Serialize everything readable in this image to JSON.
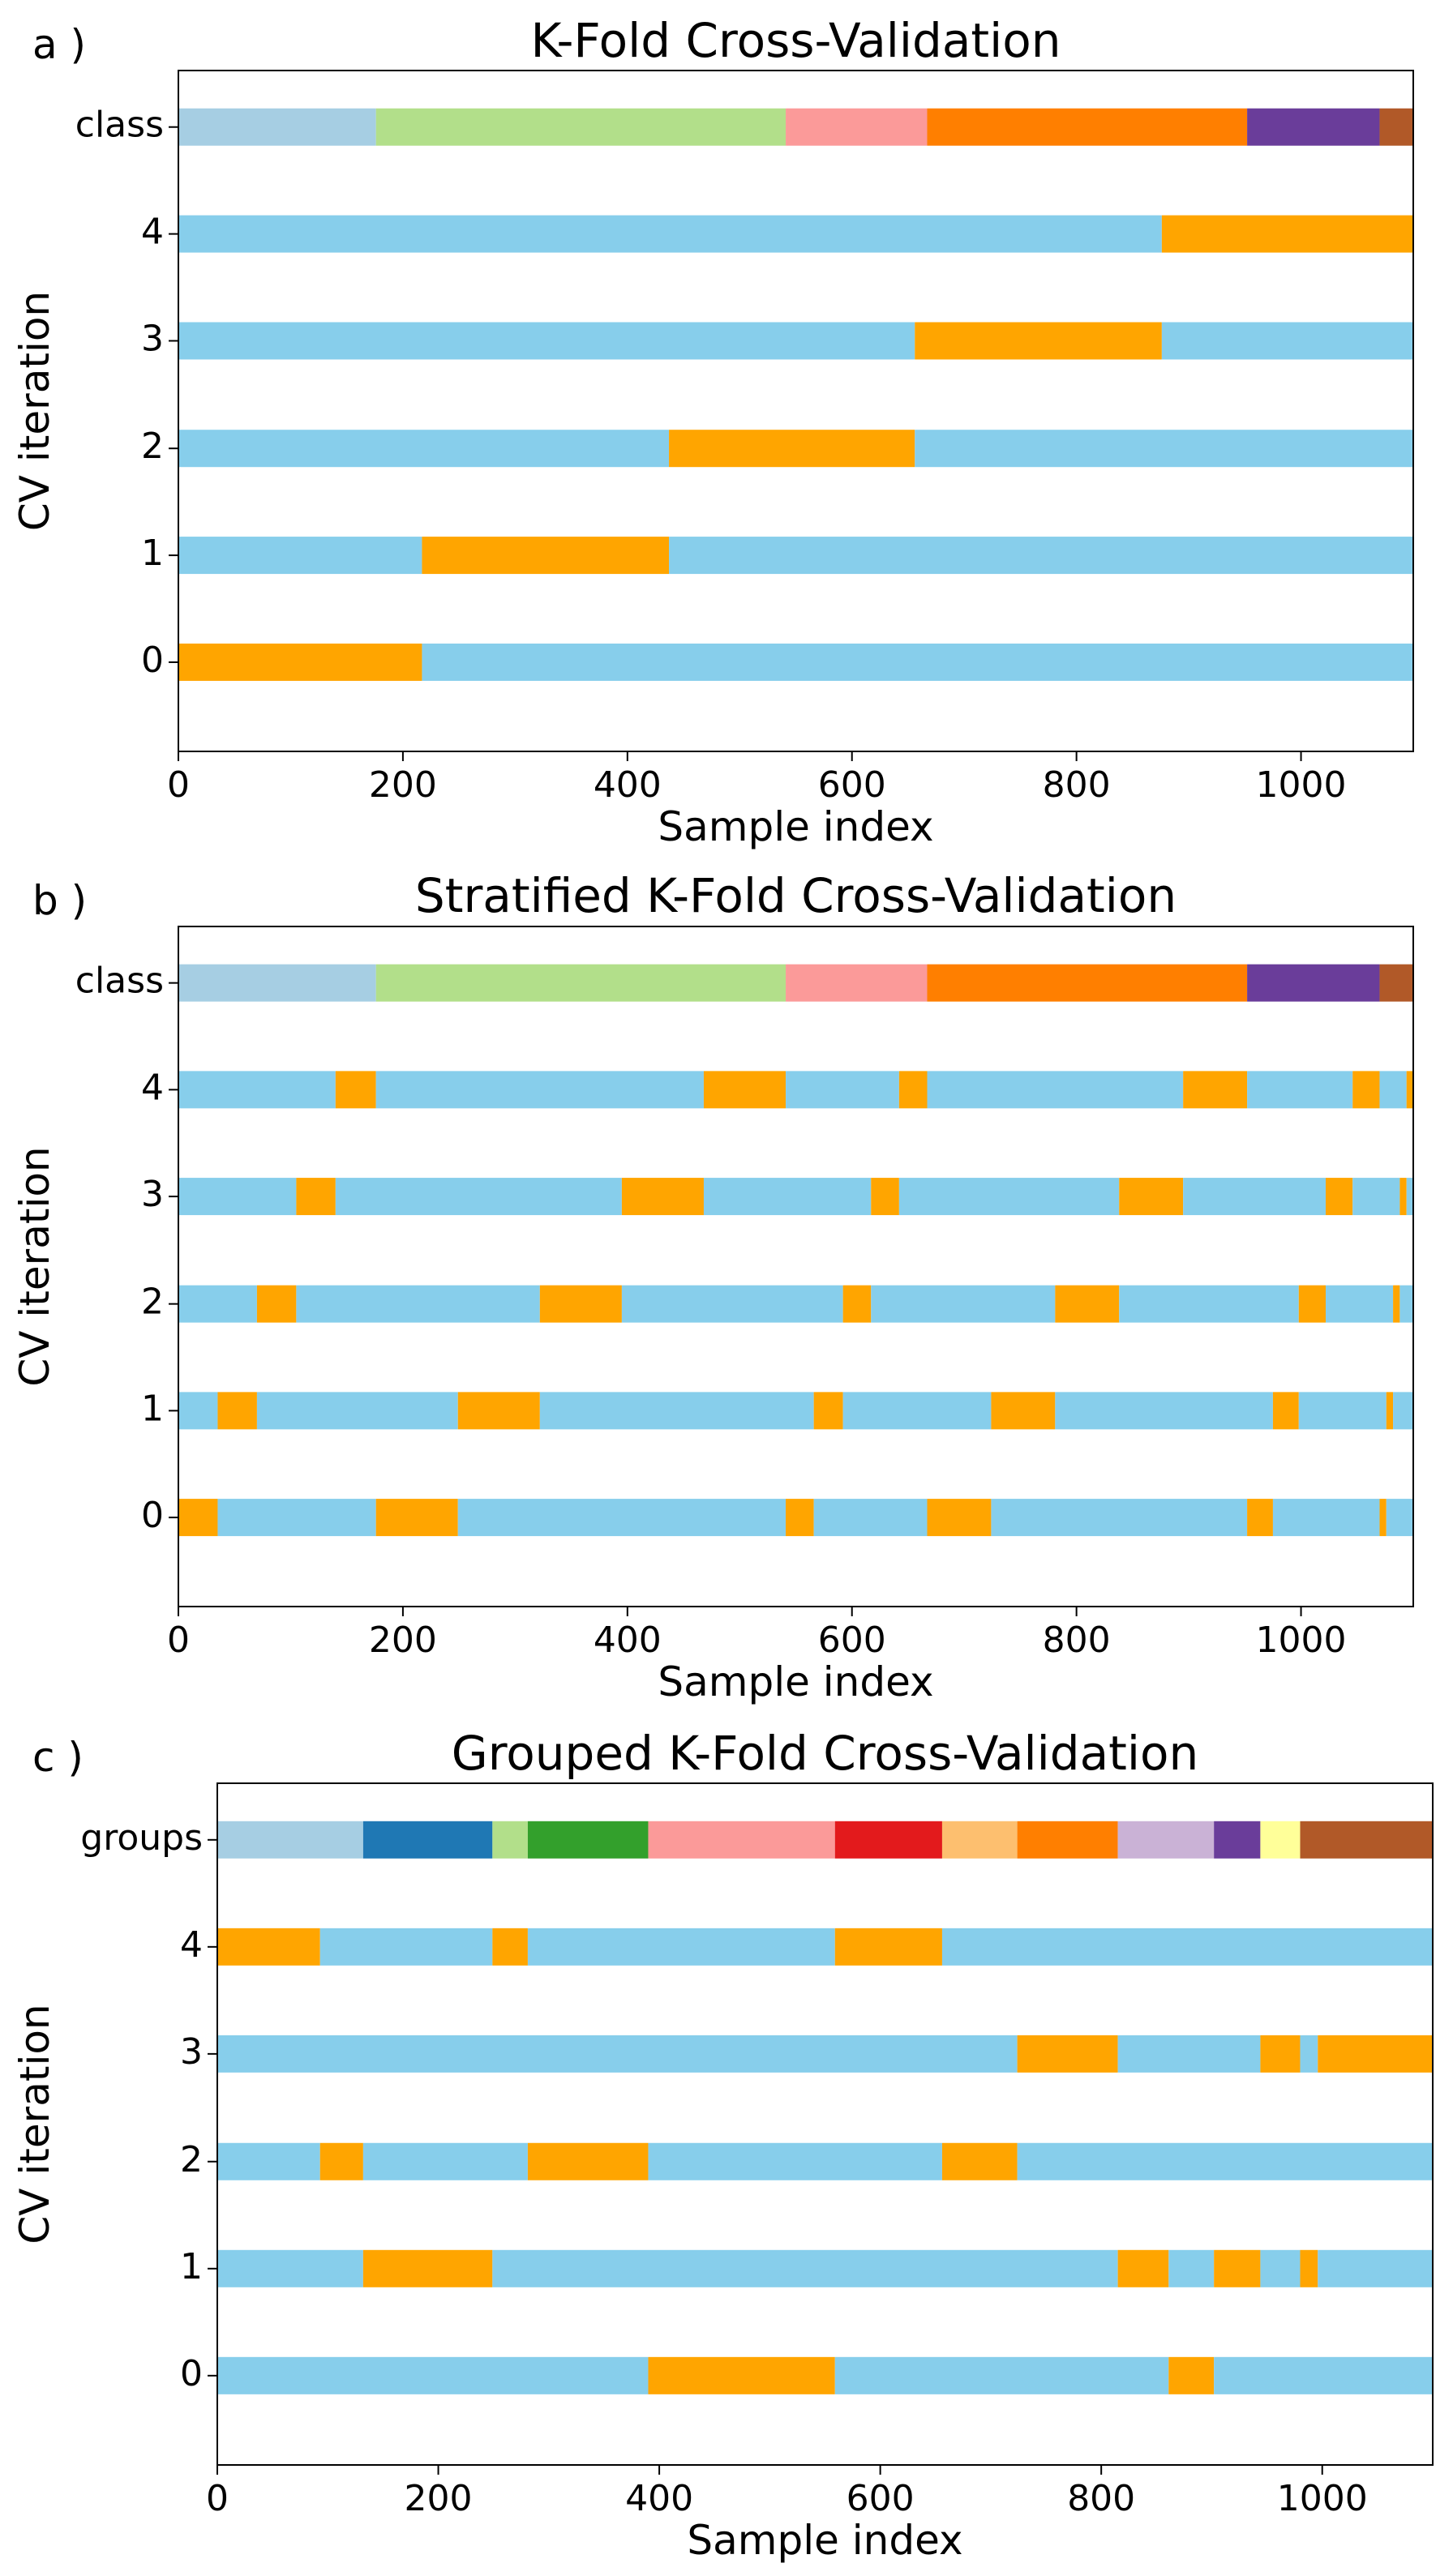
{
  "colors": {
    "train": "#87CEEB",
    "test": "#FFA500",
    "class_palette": [
      "#a6cee3",
      "#b2df8a",
      "#fb9a99",
      "#ff7f00",
      "#6a3d9a",
      "#b15928"
    ],
    "group_palette": [
      "#a6cee3",
      "#1f78b4",
      "#b2df8a",
      "#33a02c",
      "#fb9a99",
      "#e31a1c",
      "#fdbf6f",
      "#ff7f00",
      "#cab2d6",
      "#6a3d9a",
      "#ffff99",
      "#b15928"
    ]
  },
  "chart_data": [
    {
      "type": "bar",
      "panel_label": "a )",
      "title": "K-Fold Cross-Validation",
      "xlabel": "Sample index",
      "ylabel": "CV iteration",
      "xlim": [
        0,
        1100
      ],
      "xticks": [
        0,
        200,
        400,
        600,
        800,
        1000
      ],
      "grid": false,
      "rows": [
        {
          "label": "class",
          "segments": [
            {
              "start": 0,
              "end": 176,
              "cat": 0
            },
            {
              "start": 176,
              "end": 541,
              "cat": 1
            },
            {
              "start": 541,
              "end": 667,
              "cat": 2
            },
            {
              "start": 667,
              "end": 952,
              "cat": 3
            },
            {
              "start": 952,
              "end": 1070,
              "cat": 4
            },
            {
              "start": 1070,
              "end": 1100,
              "cat": 5
            }
          ]
        },
        {
          "label": "4",
          "segments": [
            {
              "start": 0,
              "end": 876,
              "set": "train"
            },
            {
              "start": 876,
              "end": 1100,
              "set": "test"
            }
          ]
        },
        {
          "label": "3",
          "segments": [
            {
              "start": 0,
              "end": 656,
              "set": "train"
            },
            {
              "start": 656,
              "end": 876,
              "set": "test"
            },
            {
              "start": 876,
              "end": 1100,
              "set": "train"
            }
          ]
        },
        {
          "label": "2",
          "segments": [
            {
              "start": 0,
              "end": 437,
              "set": "train"
            },
            {
              "start": 437,
              "end": 656,
              "set": "test"
            },
            {
              "start": 656,
              "end": 1100,
              "set": "train"
            }
          ]
        },
        {
          "label": "1",
          "segments": [
            {
              "start": 0,
              "end": 217,
              "set": "train"
            },
            {
              "start": 217,
              "end": 437,
              "set": "test"
            },
            {
              "start": 437,
              "end": 1100,
              "set": "train"
            }
          ]
        },
        {
          "label": "0",
          "segments": [
            {
              "start": 0,
              "end": 217,
              "set": "test"
            },
            {
              "start": 217,
              "end": 1100,
              "set": "train"
            }
          ]
        }
      ]
    },
    {
      "type": "bar",
      "panel_label": "b )",
      "title": "Stratified K-Fold Cross-Validation",
      "xlabel": "Sample index",
      "ylabel": "CV iteration",
      "xlim": [
        0,
        1100
      ],
      "xticks": [
        0,
        200,
        400,
        600,
        800,
        1000
      ],
      "grid": false,
      "rows": [
        {
          "label": "class",
          "segments": [
            {
              "start": 0,
              "end": 176,
              "cat": 0
            },
            {
              "start": 176,
              "end": 541,
              "cat": 1
            },
            {
              "start": 541,
              "end": 667,
              "cat": 2
            },
            {
              "start": 667,
              "end": 952,
              "cat": 3
            },
            {
              "start": 952,
              "end": 1070,
              "cat": 4
            },
            {
              "start": 1070,
              "end": 1100,
              "cat": 5
            }
          ]
        },
        {
          "label": "4",
          "segments": [
            {
              "start": 0,
              "end": 140,
              "set": "train"
            },
            {
              "start": 140,
              "end": 176,
              "set": "test"
            },
            {
              "start": 176,
              "end": 468,
              "set": "train"
            },
            {
              "start": 468,
              "end": 541,
              "set": "test"
            },
            {
              "start": 541,
              "end": 642,
              "set": "train"
            },
            {
              "start": 642,
              "end": 667,
              "set": "test"
            },
            {
              "start": 667,
              "end": 895,
              "set": "train"
            },
            {
              "start": 895,
              "end": 952,
              "set": "test"
            },
            {
              "start": 952,
              "end": 1046,
              "set": "train"
            },
            {
              "start": 1046,
              "end": 1070,
              "set": "test"
            },
            {
              "start": 1070,
              "end": 1094,
              "set": "train"
            },
            {
              "start": 1094,
              "end": 1100,
              "set": "test"
            }
          ]
        },
        {
          "label": "3",
          "segments": [
            {
              "start": 0,
              "end": 105,
              "set": "train"
            },
            {
              "start": 105,
              "end": 140,
              "set": "test"
            },
            {
              "start": 140,
              "end": 395,
              "set": "train"
            },
            {
              "start": 395,
              "end": 468,
              "set": "test"
            },
            {
              "start": 468,
              "end": 617,
              "set": "train"
            },
            {
              "start": 617,
              "end": 642,
              "set": "test"
            },
            {
              "start": 642,
              "end": 838,
              "set": "train"
            },
            {
              "start": 838,
              "end": 895,
              "set": "test"
            },
            {
              "start": 895,
              "end": 1022,
              "set": "train"
            },
            {
              "start": 1022,
              "end": 1046,
              "set": "test"
            },
            {
              "start": 1046,
              "end": 1088,
              "set": "train"
            },
            {
              "start": 1088,
              "end": 1094,
              "set": "test"
            },
            {
              "start": 1094,
              "end": 1100,
              "set": "train"
            }
          ]
        },
        {
          "label": "2",
          "segments": [
            {
              "start": 0,
              "end": 70,
              "set": "train"
            },
            {
              "start": 70,
              "end": 105,
              "set": "test"
            },
            {
              "start": 105,
              "end": 322,
              "set": "train"
            },
            {
              "start": 322,
              "end": 395,
              "set": "test"
            },
            {
              "start": 395,
              "end": 592,
              "set": "train"
            },
            {
              "start": 592,
              "end": 617,
              "set": "test"
            },
            {
              "start": 617,
              "end": 781,
              "set": "train"
            },
            {
              "start": 781,
              "end": 838,
              "set": "test"
            },
            {
              "start": 838,
              "end": 998,
              "set": "train"
            },
            {
              "start": 998,
              "end": 1022,
              "set": "test"
            },
            {
              "start": 1022,
              "end": 1082,
              "set": "train"
            },
            {
              "start": 1082,
              "end": 1088,
              "set": "test"
            },
            {
              "start": 1088,
              "end": 1100,
              "set": "train"
            }
          ]
        },
        {
          "label": "1",
          "segments": [
            {
              "start": 0,
              "end": 35,
              "set": "train"
            },
            {
              "start": 35,
              "end": 70,
              "set": "test"
            },
            {
              "start": 70,
              "end": 249,
              "set": "train"
            },
            {
              "start": 249,
              "end": 322,
              "set": "test"
            },
            {
              "start": 322,
              "end": 566,
              "set": "train"
            },
            {
              "start": 566,
              "end": 592,
              "set": "test"
            },
            {
              "start": 592,
              "end": 724,
              "set": "train"
            },
            {
              "start": 724,
              "end": 781,
              "set": "test"
            },
            {
              "start": 781,
              "end": 975,
              "set": "train"
            },
            {
              "start": 975,
              "end": 998,
              "set": "test"
            },
            {
              "start": 998,
              "end": 1076,
              "set": "train"
            },
            {
              "start": 1076,
              "end": 1082,
              "set": "test"
            },
            {
              "start": 1082,
              "end": 1100,
              "set": "train"
            }
          ]
        },
        {
          "label": "0",
          "segments": [
            {
              "start": 0,
              "end": 35,
              "set": "test"
            },
            {
              "start": 35,
              "end": 176,
              "set": "train"
            },
            {
              "start": 176,
              "end": 249,
              "set": "test"
            },
            {
              "start": 249,
              "end": 541,
              "set": "train"
            },
            {
              "start": 541,
              "end": 566,
              "set": "test"
            },
            {
              "start": 566,
              "end": 667,
              "set": "train"
            },
            {
              "start": 667,
              "end": 724,
              "set": "test"
            },
            {
              "start": 724,
              "end": 952,
              "set": "train"
            },
            {
              "start": 952,
              "end": 975,
              "set": "test"
            },
            {
              "start": 975,
              "end": 1070,
              "set": "train"
            },
            {
              "start": 1070,
              "end": 1076,
              "set": "test"
            },
            {
              "start": 1076,
              "end": 1100,
              "set": "train"
            }
          ]
        }
      ]
    },
    {
      "type": "bar",
      "panel_label": "c )",
      "title": "Grouped K-Fold Cross-Validation",
      "xlabel": "Sample index",
      "ylabel": "CV iteration",
      "xlim": [
        0,
        1100
      ],
      "xticks": [
        0,
        200,
        400,
        600,
        800,
        1000
      ],
      "grid": false,
      "rows": [
        {
          "label": "groups",
          "segments": [
            {
              "start": 0,
              "end": 132,
              "cat": 0
            },
            {
              "start": 132,
              "end": 249,
              "cat": 1
            },
            {
              "start": 249,
              "end": 281,
              "cat": 2
            },
            {
              "start": 281,
              "end": 390,
              "cat": 3
            },
            {
              "start": 390,
              "end": 559,
              "cat": 4
            },
            {
              "start": 559,
              "end": 656,
              "cat": 5
            },
            {
              "start": 656,
              "end": 724,
              "cat": 6
            },
            {
              "start": 724,
              "end": 815,
              "cat": 7
            },
            {
              "start": 815,
              "end": 902,
              "cat": 8
            },
            {
              "start": 902,
              "end": 944,
              "cat": 9
            },
            {
              "start": 944,
              "end": 980,
              "cat": 10
            },
            {
              "start": 980,
              "end": 1100,
              "cat": 11
            }
          ]
        },
        {
          "label": "4",
          "segments": [
            {
              "start": 0,
              "end": 93,
              "set": "test"
            },
            {
              "start": 93,
              "end": 249,
              "set": "train"
            },
            {
              "start": 249,
              "end": 281,
              "set": "test"
            },
            {
              "start": 281,
              "end": 559,
              "set": "train"
            },
            {
              "start": 559,
              "end": 656,
              "set": "test"
            },
            {
              "start": 656,
              "end": 1100,
              "set": "train"
            }
          ]
        },
        {
          "label": "3",
          "segments": [
            {
              "start": 0,
              "end": 724,
              "set": "train"
            },
            {
              "start": 724,
              "end": 815,
              "set": "test"
            },
            {
              "start": 815,
              "end": 944,
              "set": "train"
            },
            {
              "start": 944,
              "end": 980,
              "set": "test"
            },
            {
              "start": 980,
              "end": 996,
              "set": "train"
            },
            {
              "start": 996,
              "end": 1100,
              "set": "test"
            }
          ]
        },
        {
          "label": "2",
          "segments": [
            {
              "start": 0,
              "end": 93,
              "set": "train"
            },
            {
              "start": 93,
              "end": 132,
              "set": "test"
            },
            {
              "start": 132,
              "end": 281,
              "set": "train"
            },
            {
              "start": 281,
              "end": 390,
              "set": "test"
            },
            {
              "start": 390,
              "end": 656,
              "set": "train"
            },
            {
              "start": 656,
              "end": 724,
              "set": "test"
            },
            {
              "start": 724,
              "end": 1100,
              "set": "train"
            }
          ]
        },
        {
          "label": "1",
          "segments": [
            {
              "start": 0,
              "end": 132,
              "set": "train"
            },
            {
              "start": 132,
              "end": 249,
              "set": "test"
            },
            {
              "start": 249,
              "end": 815,
              "set": "train"
            },
            {
              "start": 815,
              "end": 861,
              "set": "test"
            },
            {
              "start": 861,
              "end": 902,
              "set": "train"
            },
            {
              "start": 902,
              "end": 944,
              "set": "test"
            },
            {
              "start": 944,
              "end": 980,
              "set": "train"
            },
            {
              "start": 980,
              "end": 996,
              "set": "test"
            },
            {
              "start": 996,
              "end": 1100,
              "set": "train"
            }
          ]
        },
        {
          "label": "0",
          "segments": [
            {
              "start": 0,
              "end": 390,
              "set": "train"
            },
            {
              "start": 390,
              "end": 559,
              "set": "test"
            },
            {
              "start": 559,
              "end": 861,
              "set": "train"
            },
            {
              "start": 861,
              "end": 902,
              "set": "test"
            },
            {
              "start": 902,
              "end": 1100,
              "set": "train"
            }
          ]
        }
      ]
    }
  ]
}
